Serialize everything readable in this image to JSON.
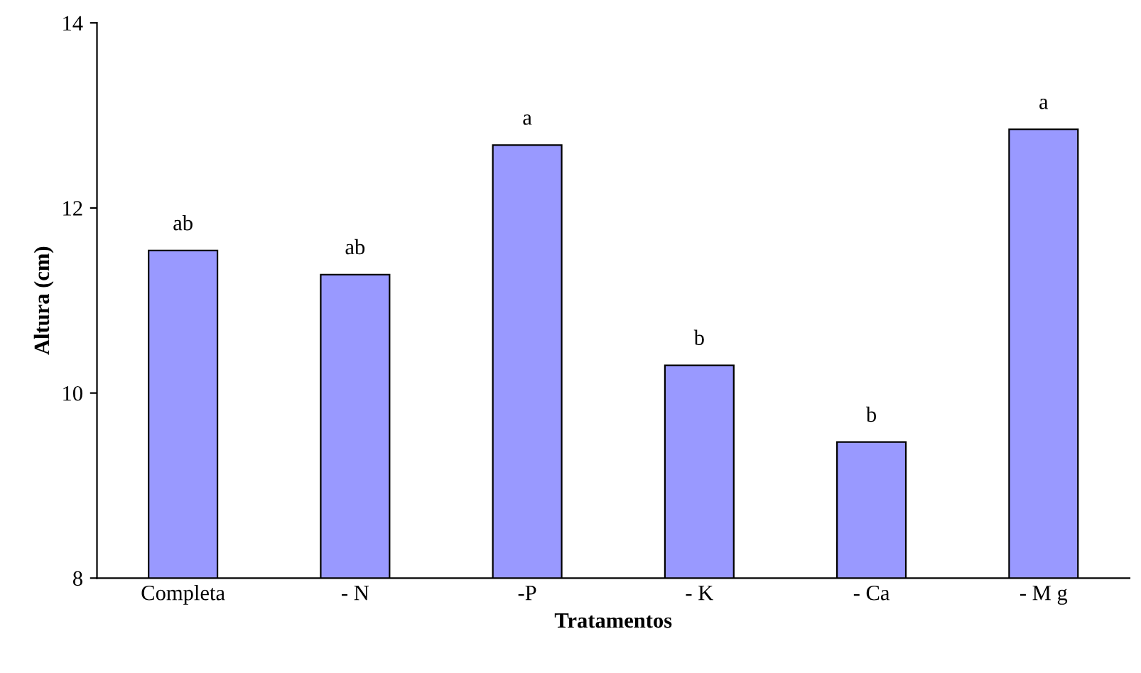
{
  "chart_data": {
    "type": "bar",
    "xlabel": "Tratamentos",
    "ylabel": "Altura (cm)",
    "categories": [
      "Completa",
      "- N",
      "-P",
      "- K",
      "- Ca",
      "- M g"
    ],
    "values": [
      11.54,
      11.28,
      12.68,
      10.3,
      9.47,
      12.85
    ],
    "color": "#9999ff",
    "ylim": [
      8,
      14
    ],
    "yticks": [
      8,
      10,
      12,
      14
    ],
    "grid": false,
    "annotations": [
      {
        "text": "ab",
        "x": "Completa",
        "y": 11.54
      },
      {
        "text": "ab",
        "x": "- N",
        "y": 11.28
      },
      {
        "text": "a",
        "x": "-P",
        "y": 12.68
      },
      {
        "text": "b",
        "x": "- K",
        "y": 10.3
      },
      {
        "text": "b",
        "x": "- Ca",
        "y": 9.47
      },
      {
        "text": "a",
        "x": "- M g",
        "y": 12.85
      }
    ]
  }
}
